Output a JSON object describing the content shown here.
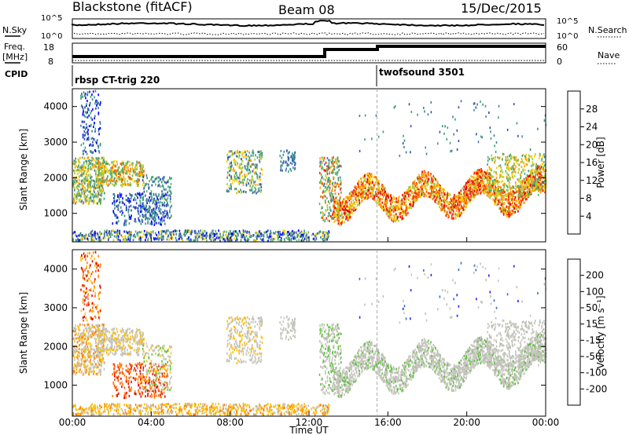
{
  "header": {
    "station": "Blackstone (fitACF)",
    "beam": "Beam 08",
    "date": "15/Dec/2015"
  },
  "top_panel": {
    "left_label_1": "N.Sky",
    "left_label_2": "Freq.",
    "left_label_3": "[MHz]",
    "left_label_4": "CPID",
    "right_label_1": "N.Search",
    "right_label_2": "Nave",
    "noise_ticks_left": [
      "10^5",
      "10^0"
    ],
    "noise_ticks_right": [
      "10^5",
      "10^0"
    ],
    "freq_ticks": [
      "18",
      "8"
    ],
    "nave_ticks": [
      "60",
      "0"
    ],
    "cpid_1": "rbsp CT-trig 220",
    "cpid_2": "twofsound 3501"
  },
  "colors": {
    "power_scale": [
      "#0000ff",
      "#2f4fb0",
      "#3f7f9f",
      "#3f9f7f",
      "#5faf5f",
      "#9fcf3f",
      "#ffcf00",
      "#ff9f00",
      "#ff6000",
      "#ff2000",
      "#e00000"
    ],
    "velocity_scale": [
      "#2020ff",
      "#3070c0",
      "#30a050",
      "#60c040",
      "#c8c8c0",
      "#c0c0b8",
      "#ffbf00",
      "#ff8000",
      "#ff5000",
      "#e00000"
    ]
  },
  "chart_data": [
    {
      "type": "heatmap",
      "title": "",
      "xlabel": "Time UT",
      "ylabel": "Slant Range [km]",
      "colorbar_label": "Power [dB]",
      "colorbar_ticks": [
        "28",
        "24",
        "20",
        "16",
        "12",
        "8",
        "4"
      ],
      "x_ticks": [
        "00:00",
        "04:00",
        "08:00",
        "12:00",
        "16:00",
        "20:00",
        "00:00"
      ],
      "y_ticks": [
        "4000",
        "3000",
        "2000",
        "1000"
      ],
      "ylim": [
        200,
        4500
      ],
      "grid": false
    },
    {
      "type": "heatmap",
      "title": "",
      "xlabel": "Time UT",
      "ylabel": "Slant Range [km]",
      "colorbar_label": "Velocity [m s⁻¹]",
      "colorbar_ticks": [
        "200",
        "100",
        "50",
        "15",
        "-15",
        "-50",
        "-100",
        "-200"
      ],
      "x_ticks": [
        "00:00",
        "04:00",
        "08:00",
        "12:00",
        "16:00",
        "20:00",
        "00:00"
      ],
      "y_ticks": [
        "4000",
        "3000",
        "2000",
        "1000"
      ],
      "ylim": [
        200,
        4500
      ],
      "grid": false
    }
  ]
}
